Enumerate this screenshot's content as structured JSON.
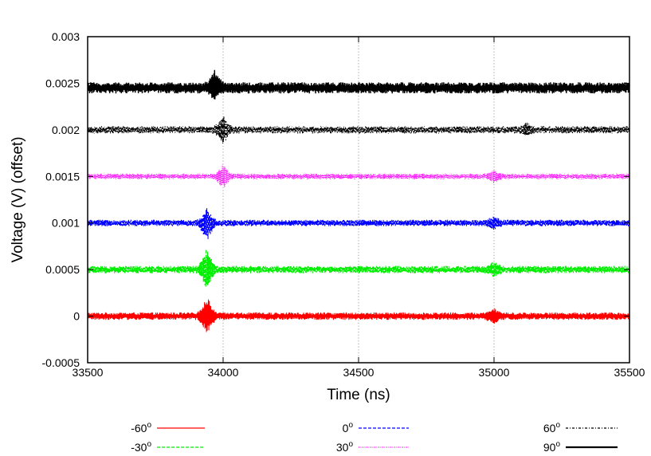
{
  "chart_data": {
    "type": "line",
    "title": "",
    "xlabel": "Time (ns)",
    "ylabel": "Voltage (V) (offset)",
    "xlim": [
      33500,
      35500
    ],
    "ylim": [
      -0.0005,
      0.003
    ],
    "x_ticks": [
      33500,
      34000,
      34500,
      35000,
      35500
    ],
    "x_tick_labels": [
      "33500",
      "34000",
      "34500",
      "35000",
      "35500"
    ],
    "y_ticks": [
      -0.0005,
      0,
      0.0005,
      0.001,
      0.0015,
      0.002,
      0.0025,
      0.003
    ],
    "y_tick_labels": [
      "-0.0005",
      "0",
      "0.0005",
      "0.001",
      "0.0015",
      "0.002",
      "0.0025",
      "0.003"
    ],
    "grid": "vertical dotted lines at x = 34000, 34500, 35000",
    "legend_position": "bottom",
    "series": [
      {
        "name": "-60",
        "unit_superscript": "o",
        "color": "#ff0000",
        "dash": "solid",
        "offset": 0,
        "noise_amplitude": 4e-05,
        "bursts": [
          {
            "x": 33940,
            "peak": 0.0002,
            "valley": -0.0002
          },
          {
            "x": 35000,
            "peak": 7e-05,
            "valley": -7e-05
          }
        ]
      },
      {
        "name": "-30",
        "unit_superscript": "o",
        "color": "#00ee00",
        "dash": "dashed",
        "offset": 0.0005,
        "noise_amplitude": 4e-05,
        "bursts": [
          {
            "x": 33940,
            "peak": 0.00022,
            "valley": -0.00022
          },
          {
            "x": 35000,
            "peak": 6e-05,
            "valley": -6e-05
          }
        ]
      },
      {
        "name": "0",
        "unit_superscript": "o",
        "color": "#0000ff",
        "dash": "dashed",
        "offset": 0.001,
        "noise_amplitude": 3.5e-05,
        "bursts": [
          {
            "x": 33940,
            "peak": 0.00014,
            "valley": -0.0002
          },
          {
            "x": 35000,
            "peak": 5e-05,
            "valley": -5e-05
          }
        ]
      },
      {
        "name": "30",
        "unit_superscript": "o",
        "color": "#ff00ff",
        "dash": "dotted",
        "offset": 0.0015,
        "noise_amplitude": 3e-05,
        "bursts": [
          {
            "x": 34000,
            "peak": 0.00012,
            "valley": -0.00012
          },
          {
            "x": 35000,
            "peak": 5e-05,
            "valley": -5e-05
          }
        ]
      },
      {
        "name": "60",
        "unit_superscript": "o",
        "color": "#000000",
        "dash": "dash-dot",
        "offset": 0.002,
        "noise_amplitude": 4e-05,
        "bursts": [
          {
            "x": 34000,
            "peak": 0.00015,
            "valley": -0.00015
          },
          {
            "x": 35120,
            "peak": 5e-05,
            "valley": -5e-05
          }
        ]
      },
      {
        "name": "90",
        "unit_superscript": "o",
        "color": "#000000",
        "dash": "solid-thick",
        "offset": 0.00245,
        "noise_amplitude": 6e-05,
        "bursts": [
          {
            "x": 33970,
            "peak": 0.00015,
            "valley": -0.00012
          }
        ]
      }
    ]
  }
}
